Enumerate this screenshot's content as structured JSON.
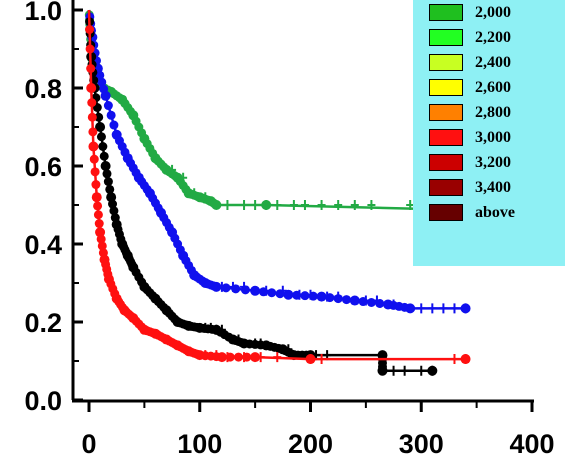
{
  "chart_data": {
    "type": "line",
    "title": "",
    "xlabel": "",
    "ylabel": "",
    "xlim": [
      0,
      400
    ],
    "ylim": [
      0.0,
      1.0
    ],
    "x_ticks": [
      0,
      100,
      200,
      300,
      400
    ],
    "y_ticks": [
      0.0,
      0.2,
      0.4,
      0.6,
      0.8,
      1.0
    ],
    "x_tick_labels": [
      "0",
      "100",
      "200",
      "300",
      "400"
    ],
    "y_tick_labels": [
      "0.0",
      "0.2",
      "0.4",
      "0.6",
      "0.8",
      "1.0"
    ],
    "legend": {
      "placement": "top-right",
      "entries": [
        {
          "label": "2,000",
          "color": "#1fbf1f"
        },
        {
          "label": "2,200",
          "color": "#22ff22"
        },
        {
          "label": "2,400",
          "color": "#c8ff22"
        },
        {
          "label": "2,600",
          "color": "#ffff00"
        },
        {
          "label": "2,800",
          "color": "#ff8000"
        },
        {
          "label": "3,000",
          "color": "#ff1010"
        },
        {
          "label": "3,200",
          "color": "#cc0000"
        },
        {
          "label": "3,400",
          "color": "#990000"
        },
        {
          "label": "above",
          "color": "#660000"
        }
      ]
    },
    "series": [
      {
        "color": "#22aa44",
        "points": [
          [
            0,
            1.0
          ],
          [
            1,
            0.95
          ],
          [
            3,
            0.85
          ],
          [
            8,
            0.81
          ],
          [
            20,
            0.79
          ],
          [
            30,
            0.77
          ],
          [
            40,
            0.73
          ],
          [
            50,
            0.67
          ],
          [
            60,
            0.62
          ],
          [
            70,
            0.59
          ],
          [
            80,
            0.57
          ],
          [
            90,
            0.53
          ],
          [
            100,
            0.52
          ],
          [
            110,
            0.51
          ],
          [
            115,
            0.5
          ],
          [
            160,
            0.5
          ],
          [
            300,
            0.49
          ],
          [
            330,
            0.49
          ]
        ],
        "censor_x": [
          75,
          85,
          95,
          105,
          125,
          140,
          150,
          160,
          170,
          185,
          195,
          210,
          225,
          240,
          255,
          290,
          300
        ]
      },
      {
        "color": "#1010ee",
        "points": [
          [
            0,
            1.0
          ],
          [
            3,
            0.93
          ],
          [
            8,
            0.85
          ],
          [
            15,
            0.78
          ],
          [
            25,
            0.68
          ],
          [
            35,
            0.62
          ],
          [
            45,
            0.57
          ],
          [
            55,
            0.53
          ],
          [
            65,
            0.48
          ],
          [
            75,
            0.43
          ],
          [
            85,
            0.37
          ],
          [
            95,
            0.32
          ],
          [
            105,
            0.3
          ],
          [
            115,
            0.29
          ],
          [
            150,
            0.28
          ],
          [
            180,
            0.27
          ],
          [
            210,
            0.265
          ],
          [
            240,
            0.255
          ],
          [
            270,
            0.245
          ],
          [
            290,
            0.235
          ],
          [
            340,
            0.235
          ]
        ],
        "censor_x": [
          120,
          130,
          140,
          160,
          175,
          190,
          200,
          215,
          225,
          250,
          260,
          275,
          300,
          310,
          320,
          330,
          340
        ]
      },
      {
        "color": "#000000",
        "points": [
          [
            0,
            1.0
          ],
          [
            2,
            0.88
          ],
          [
            5,
            0.8
          ],
          [
            10,
            0.7
          ],
          [
            15,
            0.6
          ],
          [
            20,
            0.52
          ],
          [
            25,
            0.45
          ],
          [
            30,
            0.4
          ],
          [
            35,
            0.37
          ],
          [
            40,
            0.34
          ],
          [
            50,
            0.29
          ],
          [
            60,
            0.26
          ],
          [
            70,
            0.23
          ],
          [
            80,
            0.2
          ],
          [
            90,
            0.19
          ],
          [
            100,
            0.185
          ],
          [
            115,
            0.18
          ],
          [
            130,
            0.155
          ],
          [
            140,
            0.145
          ],
          [
            160,
            0.14
          ],
          [
            175,
            0.13
          ],
          [
            185,
            0.115
          ],
          [
            200,
            0.115
          ],
          [
            265,
            0.115
          ],
          [
            265,
            0.075
          ],
          [
            310,
            0.075
          ]
        ],
        "censor_x": [
          105,
          110,
          115,
          120,
          135,
          150,
          155,
          180,
          205,
          215,
          275,
          285,
          300,
          310
        ]
      },
      {
        "color": "#ff1010",
        "points": [
          [
            0,
            1.0
          ],
          [
            2,
            0.8
          ],
          [
            4,
            0.65
          ],
          [
            7,
            0.52
          ],
          [
            10,
            0.43
          ],
          [
            14,
            0.36
          ],
          [
            18,
            0.31
          ],
          [
            25,
            0.26
          ],
          [
            32,
            0.23
          ],
          [
            40,
            0.21
          ],
          [
            50,
            0.18
          ],
          [
            60,
            0.17
          ],
          [
            70,
            0.155
          ],
          [
            80,
            0.14
          ],
          [
            90,
            0.125
          ],
          [
            100,
            0.115
          ],
          [
            120,
            0.11
          ],
          [
            150,
            0.11
          ],
          [
            200,
            0.105
          ],
          [
            340,
            0.105
          ]
        ],
        "censor_x": [
          105,
          115,
          125,
          140,
          155,
          170,
          200,
          210,
          330,
          340
        ]
      }
    ]
  }
}
